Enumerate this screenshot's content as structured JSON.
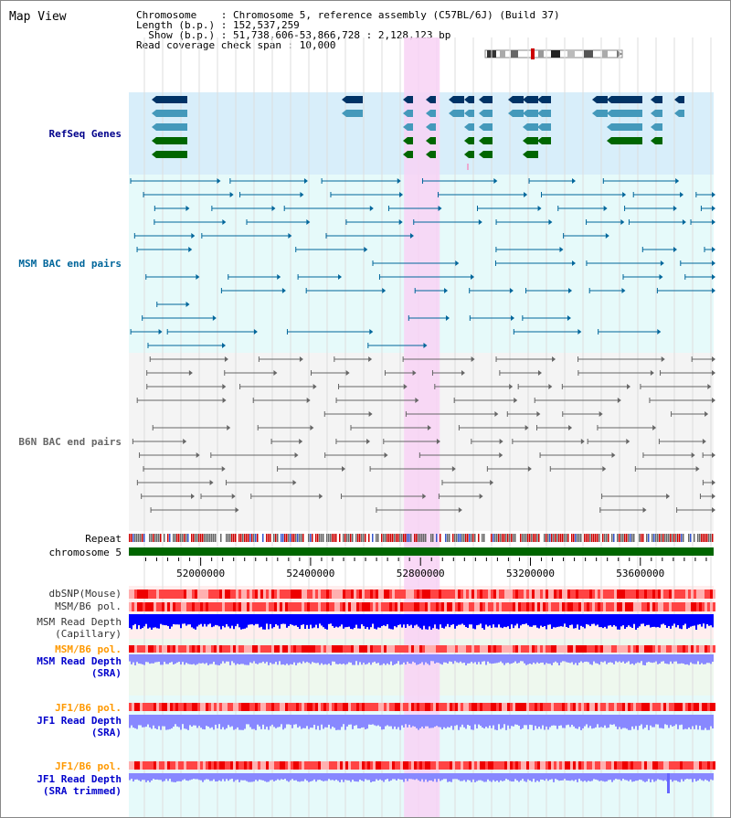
{
  "title": "Map View",
  "info": {
    "chromosome": "Chromosome    : Chromosome 5, reference assembly (C57BL/6J) (Build 37)",
    "length": "Length (b.p.) : 152,537,259",
    "show": "  Show (b.p.) : 51,738,606-53,866,728 : 2,128,123 bp",
    "coverage": "Read coverage check span : 10,000"
  },
  "axis": {
    "ticks": [
      "52000000",
      "52400000",
      "52800000",
      "53200000",
      "53600000"
    ],
    "tick_values": [
      52000000,
      52400000,
      52800000,
      53200000,
      53600000
    ],
    "range": [
      51738606,
      53866728
    ]
  },
  "highlight": {
    "start": 52740000,
    "end": 52870000
  },
  "tracks": {
    "refseq": {
      "label": "RefSeq Genes",
      "color": "#00008b"
    },
    "msm_bac": {
      "label": "MSM BAC end pairs",
      "color": "#00669b"
    },
    "b6n_bac": {
      "label": "B6N BAC end pairs",
      "color": "#666666"
    },
    "repeat": {
      "label": "Repeat"
    },
    "chromosome": {
      "label": "chromosome 5"
    },
    "dbsnp": {
      "label": "dbSNP(Mouse)"
    },
    "msm_b6_pol": {
      "label": "MSM/B6 pol."
    },
    "msm_depth_cap": {
      "label": "MSM Read Depth\n(Capillary)"
    },
    "msm_b6_pol2": {
      "label": "MSM/B6 pol.",
      "color": "#ff9900"
    },
    "msm_depth_sra": {
      "label": "MSM Read Depth\n(SRA)",
      "color": "#0000cc"
    },
    "jf1_b6_pol": {
      "label": "JF1/B6 pol.",
      "color": "#ff9900"
    },
    "jf1_depth_sra": {
      "label": "JF1 Read Depth\n(SRA)",
      "color": "#0000cc"
    },
    "jf1_b6_pol2": {
      "label": "JF1/B6 pol.",
      "color": "#ff9900"
    },
    "jf1_depth_trim": {
      "label": "JF1 Read Depth\n(SRA trimmed)",
      "color": "#0000cc"
    }
  },
  "colors": {
    "refseq_bg": "#d8eefa",
    "msm_bg": "#e6fafa",
    "b6n_bg": "#f4f4f4",
    "highlight": "#f8d2f4",
    "gene_dark": "#003366",
    "gene_mid": "#4499bb",
    "gene_green": "#006600",
    "depth_blue": "#0000ff",
    "depth_light": "#8888ff",
    "pol_red": "#ff4444",
    "pol_pink": "#ffb0b0"
  }
}
